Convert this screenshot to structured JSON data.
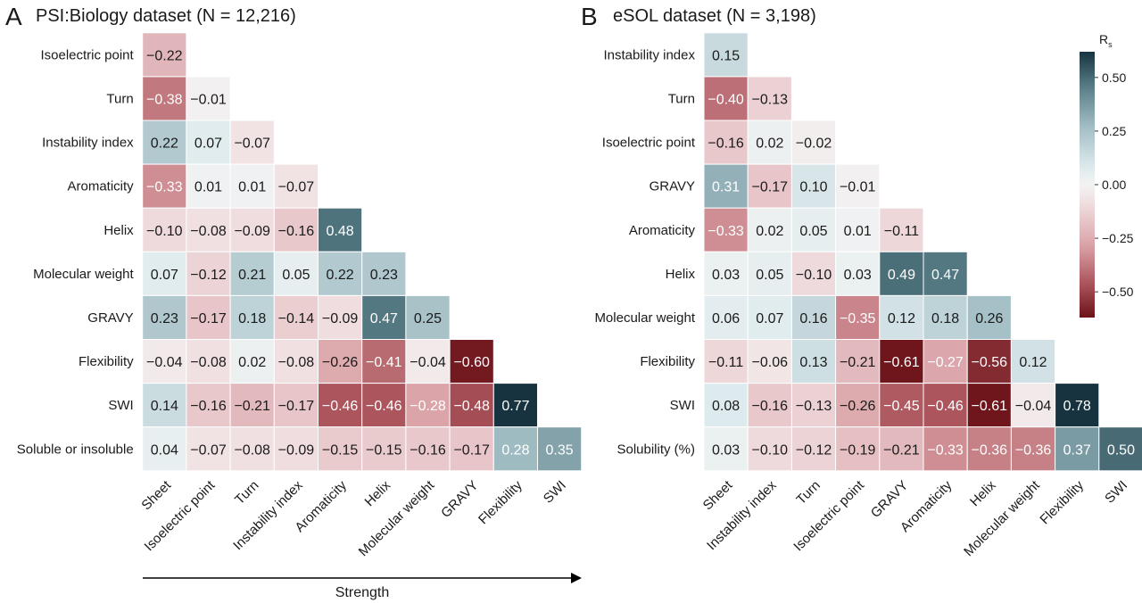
{
  "chart_data": [
    {
      "type": "heatmap",
      "panel_label": "A",
      "title": "PSI:Biology dataset (N = 12,216)",
      "rows": [
        "Isoelectric point",
        "Turn",
        "Instability index",
        "Aromaticity",
        "Helix",
        "Molecular weight",
        "GRAVY",
        "Flexibility",
        "SWI",
        "Soluble or insoluble"
      ],
      "columns": [
        "Sheet",
        "Isoelectric point",
        "Turn",
        "Instability index",
        "Aromaticity",
        "Helix",
        "Molecular weight",
        "GRAVY",
        "Flexibility",
        "SWI"
      ],
      "values": [
        [
          -0.22
        ],
        [
          -0.38,
          -0.01
        ],
        [
          0.22,
          0.07,
          -0.07
        ],
        [
          -0.33,
          0.01,
          0.01,
          -0.07
        ],
        [
          -0.1,
          -0.08,
          -0.09,
          -0.16,
          0.48
        ],
        [
          0.07,
          -0.12,
          0.21,
          0.05,
          0.22,
          0.23
        ],
        [
          0.23,
          -0.17,
          0.18,
          -0.14,
          -0.09,
          0.47,
          0.25
        ],
        [
          -0.04,
          -0.08,
          0.02,
          -0.08,
          -0.26,
          -0.41,
          -0.04,
          -0.6
        ],
        [
          0.14,
          -0.16,
          -0.21,
          -0.17,
          -0.46,
          -0.46,
          -0.28,
          -0.48,
          0.77
        ],
        [
          0.04,
          -0.07,
          -0.08,
          -0.09,
          -0.15,
          -0.15,
          -0.16,
          -0.17,
          0.28,
          0.35
        ]
      ],
      "arrow_label": "Strength"
    },
    {
      "type": "heatmap",
      "panel_label": "B",
      "title": "eSOL dataset (N = 3,198)",
      "rows": [
        "Instability index",
        "Turn",
        "Isoelectric point",
        "GRAVY",
        "Aromaticity",
        "Helix",
        "Molecular weight",
        "Flexibility",
        "SWI",
        "Solubility (%)"
      ],
      "columns": [
        "Sheet",
        "Instability index",
        "Turn",
        "Isoelectric point",
        "GRAVY",
        "Aromaticity",
        "Helix",
        "Molecular weight",
        "Flexibility",
        "SWI"
      ],
      "values": [
        [
          0.15
        ],
        [
          -0.4,
          -0.13
        ],
        [
          -0.16,
          0.02,
          -0.02
        ],
        [
          0.31,
          -0.17,
          0.1,
          -0.01
        ],
        [
          -0.33,
          0.02,
          0.05,
          0.01,
          -0.11
        ],
        [
          0.03,
          0.05,
          -0.1,
          0.03,
          0.49,
          0.47
        ],
        [
          0.06,
          0.07,
          0.16,
          -0.35,
          0.12,
          0.18,
          0.26
        ],
        [
          -0.11,
          -0.06,
          0.13,
          -0.21,
          -0.61,
          -0.27,
          -0.56,
          0.12
        ],
        [
          0.08,
          -0.16,
          -0.13,
          -0.26,
          -0.45,
          -0.46,
          -0.61,
          -0.04,
          0.78
        ],
        [
          0.03,
          -0.1,
          -0.12,
          -0.19,
          -0.21,
          -0.33,
          -0.36,
          -0.36,
          0.37,
          0.5
        ]
      ]
    }
  ],
  "colorbar": {
    "title": "R",
    "title_subscript": "s",
    "range": [
      -0.62,
      0.62
    ],
    "ticks": [
      0.5,
      0.25,
      0.0,
      -0.25,
      -0.5
    ],
    "tick_labels": [
      "0.50",
      "0.25",
      "0.00",
      "−0.25",
      "−0.50"
    ],
    "colors": {
      "negative": "#6b1218",
      "neutral": "#f2f2f2",
      "positive": "#17333f"
    }
  }
}
